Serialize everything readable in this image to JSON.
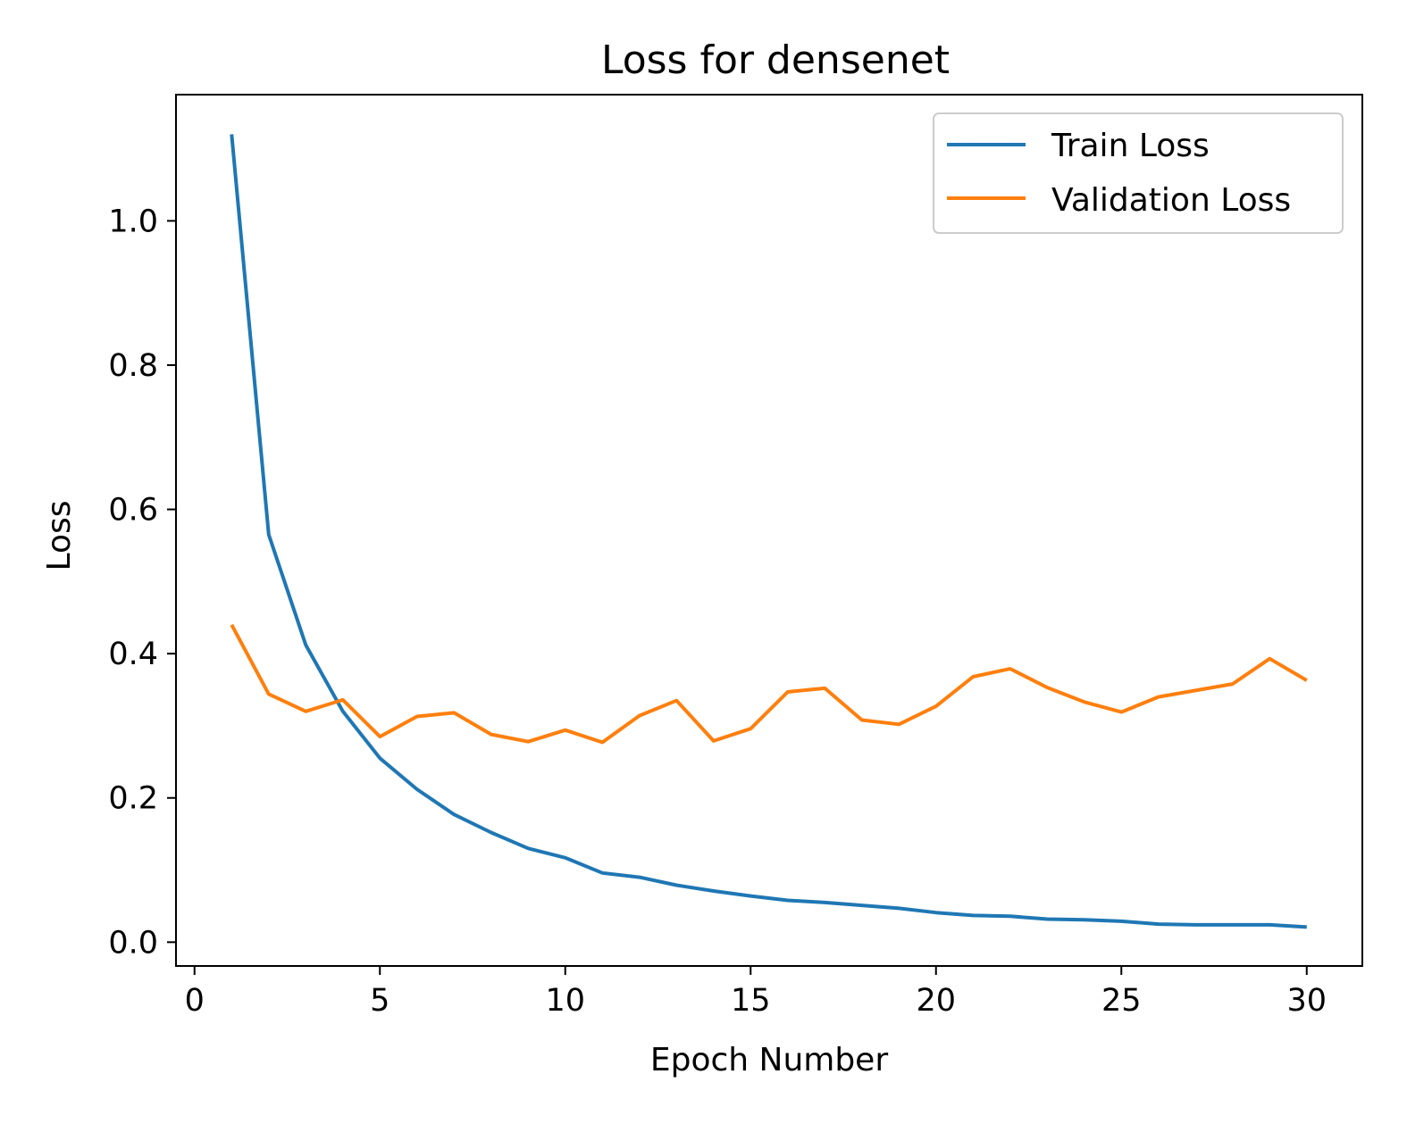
{
  "chart_data": {
    "type": "line",
    "title": "Loss for densenet",
    "xlabel": "Epoch Number",
    "ylabel": "Loss",
    "xlim": [
      -0.5,
      31.5
    ],
    "ylim": [
      -0.033,
      1.175
    ],
    "xticks": [
      0,
      5,
      10,
      15,
      20,
      25,
      30
    ],
    "yticks": [
      0.0,
      0.2,
      0.4,
      0.6,
      0.8,
      1.0
    ],
    "xtick_labels": [
      "0",
      "5",
      "10",
      "15",
      "20",
      "25",
      "30"
    ],
    "ytick_labels": [
      "0.0",
      "0.2",
      "0.4",
      "0.6",
      "0.8",
      "1.0"
    ],
    "grid": false,
    "legend_position": "top-right",
    "x": [
      1,
      2,
      3,
      4,
      5,
      6,
      7,
      8,
      9,
      10,
      11,
      12,
      13,
      14,
      15,
      16,
      17,
      18,
      19,
      20,
      21,
      22,
      23,
      24,
      25,
      26,
      27,
      28,
      29,
      30
    ],
    "series": [
      {
        "name": "Train Loss",
        "color": "#1f77b4",
        "values": [
          1.12,
          0.565,
          0.412,
          0.32,
          0.255,
          0.212,
          0.177,
          0.152,
          0.13,
          0.117,
          0.096,
          0.09,
          0.079,
          0.071,
          0.064,
          0.058,
          0.055,
          0.051,
          0.047,
          0.041,
          0.037,
          0.036,
          0.032,
          0.031,
          0.029,
          0.025,
          0.024,
          0.024,
          0.024,
          0.021
        ]
      },
      {
        "name": "Validation Loss",
        "color": "#ff7f0e",
        "values": [
          0.44,
          0.344,
          0.32,
          0.336,
          0.285,
          0.313,
          0.318,
          0.288,
          0.278,
          0.294,
          0.277,
          0.314,
          0.335,
          0.279,
          0.296,
          0.347,
          0.352,
          0.308,
          0.302,
          0.327,
          0.368,
          0.379,
          0.353,
          0.333,
          0.319,
          0.34,
          0.349,
          0.358,
          0.393,
          0.363
        ]
      }
    ]
  }
}
